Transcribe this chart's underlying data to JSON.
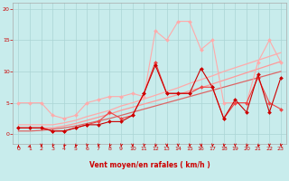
{
  "xlabel": "Vent moyen/en rafales ( km/h )",
  "xlim": [
    -0.5,
    23.5
  ],
  "ylim": [
    -1.5,
    21
  ],
  "yticks": [
    0,
    5,
    10,
    15,
    20
  ],
  "xticks": [
    0,
    1,
    2,
    3,
    4,
    5,
    6,
    7,
    8,
    9,
    10,
    11,
    12,
    13,
    14,
    15,
    16,
    17,
    18,
    19,
    20,
    21,
    22,
    23
  ],
  "background_color": "#c8ecec",
  "grid_color": "#aad4d4",
  "lines": [
    {
      "x": [
        0,
        1,
        2,
        3,
        4,
        5,
        6,
        7,
        8,
        9,
        10,
        11,
        12,
        13,
        14,
        15,
        16,
        17,
        18,
        19,
        20,
        21,
        22,
        23
      ],
      "y": [
        0.5,
        0.5,
        0.6,
        0.8,
        1.0,
        1.3,
        1.7,
        2.1,
        2.5,
        3.0,
        3.5,
        4.0,
        4.5,
        5.0,
        5.5,
        6.0,
        6.5,
        7.0,
        7.5,
        8.0,
        8.5,
        9.0,
        9.5,
        10.0
      ],
      "color": "#dd6666",
      "marker": null,
      "markersize": 0,
      "linewidth": 0.9,
      "zorder": 2
    },
    {
      "x": [
        0,
        1,
        2,
        3,
        4,
        5,
        6,
        7,
        8,
        9,
        10,
        11,
        12,
        13,
        14,
        15,
        16,
        17,
        18,
        19,
        20,
        21,
        22,
        23
      ],
      "y": [
        1.0,
        1.0,
        1.0,
        1.0,
        1.3,
        1.7,
        2.2,
        2.7,
        3.2,
        3.8,
        4.3,
        4.8,
        5.3,
        5.8,
        6.3,
        6.9,
        7.4,
        8.0,
        8.6,
        9.2,
        9.8,
        10.4,
        11.0,
        11.6
      ],
      "color": "#ff9999",
      "marker": null,
      "markersize": 0,
      "linewidth": 0.9,
      "zorder": 2
    },
    {
      "x": [
        0,
        1,
        2,
        3,
        4,
        5,
        6,
        7,
        8,
        9,
        10,
        11,
        12,
        13,
        14,
        15,
        16,
        17,
        18,
        19,
        20,
        21,
        22,
        23
      ],
      "y": [
        1.5,
        1.5,
        1.5,
        1.5,
        1.8,
        2.2,
        2.8,
        3.3,
        3.8,
        4.5,
        5.0,
        5.6,
        6.2,
        6.8,
        7.4,
        8.1,
        8.7,
        9.3,
        10.0,
        10.6,
        11.2,
        11.8,
        12.4,
        13.0
      ],
      "color": "#ffaaaa",
      "marker": null,
      "markersize": 0,
      "linewidth": 0.9,
      "zorder": 2
    },
    {
      "x": [
        0,
        1,
        2,
        3,
        4,
        5,
        6,
        7,
        8,
        9,
        10,
        11,
        12,
        13,
        14,
        15,
        16,
        17,
        18,
        19,
        20,
        21,
        22,
        23
      ],
      "y": [
        5.0,
        5.0,
        5.0,
        3.0,
        2.5,
        3.0,
        5.0,
        5.5,
        6.0,
        6.0,
        6.5,
        6.0,
        16.5,
        15.0,
        18.0,
        18.0,
        13.5,
        15.0,
        5.0,
        5.0,
        5.0,
        11.5,
        15.0,
        11.5
      ],
      "color": "#ffaaaa",
      "marker": "D",
      "markersize": 2.0,
      "linewidth": 0.8,
      "zorder": 3
    },
    {
      "x": [
        0,
        1,
        2,
        3,
        4,
        5,
        6,
        7,
        8,
        9,
        10,
        11,
        12,
        13,
        14,
        15,
        16,
        17,
        18,
        19,
        20,
        21,
        22,
        23
      ],
      "y": [
        1.0,
        1.0,
        1.0,
        0.5,
        0.5,
        1.0,
        1.5,
        2.0,
        3.5,
        2.5,
        3.0,
        6.5,
        11.5,
        6.5,
        6.5,
        6.5,
        7.5,
        7.5,
        2.5,
        5.0,
        5.0,
        9.0,
        5.0,
        4.0
      ],
      "color": "#ee4444",
      "marker": "D",
      "markersize": 2.0,
      "linewidth": 0.8,
      "zorder": 4
    },
    {
      "x": [
        0,
        1,
        2,
        3,
        4,
        5,
        6,
        7,
        8,
        9,
        10,
        11,
        12,
        13,
        14,
        15,
        16,
        17,
        18,
        19,
        20,
        21,
        22,
        23
      ],
      "y": [
        1.0,
        1.0,
        1.0,
        0.5,
        0.5,
        1.0,
        1.5,
        1.5,
        2.0,
        2.0,
        3.0,
        6.5,
        11.0,
        6.5,
        6.5,
        6.5,
        10.5,
        7.5,
        2.5,
        5.5,
        3.5,
        9.5,
        3.5,
        9.0
      ],
      "color": "#cc0000",
      "marker": "D",
      "markersize": 2.0,
      "linewidth": 0.8,
      "zorder": 5
    }
  ],
  "wind_angles": [
    90,
    80,
    270,
    260,
    255,
    255,
    265,
    265,
    260,
    265,
    270,
    265,
    260,
    270,
    270,
    265,
    270,
    265,
    265,
    270,
    260,
    255,
    270,
    265
  ]
}
